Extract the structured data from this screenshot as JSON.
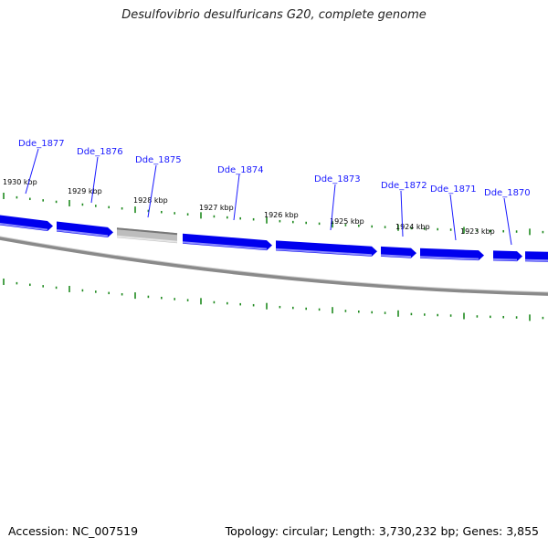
{
  "title": "Desulfovibrio desulfuricans G20, complete genome",
  "footer": {
    "accession": "Accession: NC_007519",
    "summary": "Topology: circular; Length: 3,730,232 bp; Genes: 3,855"
  },
  "colors": {
    "gene_fill": "#0000ee",
    "gene_highlight": "#8a8aff",
    "pseudo_fill": "#bdbdbd",
    "backbone": "#8a8a8a",
    "ticks": "#1f8a1f",
    "gene_label": "#1a1aff"
  },
  "scale": {
    "tick_labels": [
      "1930 kbp",
      "1929 kbp",
      "1928 kbp",
      "1927 kbp",
      "1926 kbp",
      "1925 kbp",
      "1924 kbp",
      "1923 kbp"
    ]
  },
  "genes": [
    {
      "label": "Dde_1877",
      "type": "cds"
    },
    {
      "label": "Dde_1876",
      "type": "cds"
    },
    {
      "label": "Dde_1875",
      "type": "pseudo"
    },
    {
      "label": "Dde_1874",
      "type": "cds"
    },
    {
      "label": "Dde_1873",
      "type": "cds"
    },
    {
      "label": "Dde_1872",
      "type": "cds"
    },
    {
      "label": "Dde_1871",
      "type": "cds"
    },
    {
      "label": "Dde_1870",
      "type": "cds"
    }
  ]
}
